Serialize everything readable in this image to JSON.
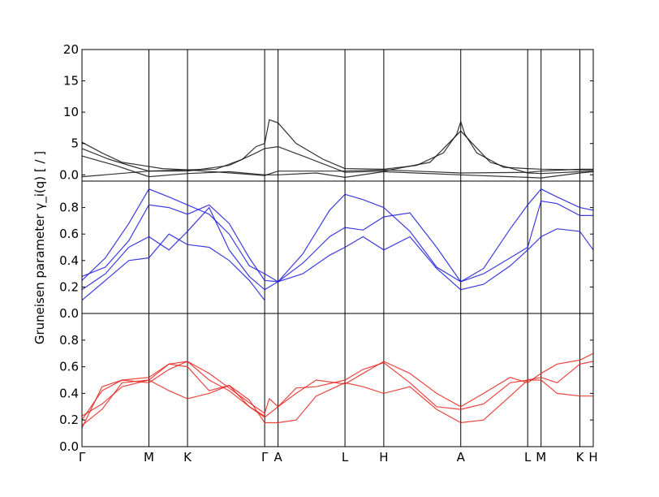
{
  "chart_data": {
    "type": "line",
    "ylabel": "Gruneisen parameter γ_i(q) [ / ]",
    "xticks": [
      {
        "label": "Γ",
        "x": 0
      },
      {
        "label": "M",
        "x": 1.0
      },
      {
        "label": "K",
        "x": 1.577
      },
      {
        "label": "Γ",
        "x": 2.73
      },
      {
        "label": "A",
        "x": 2.93
      },
      {
        "label": "L",
        "x": 3.93
      },
      {
        "label": "H",
        "x": 4.51
      },
      {
        "label": "A",
        "x": 5.66
      },
      {
        "label": "L",
        "x": 6.66
      },
      {
        "label": "M",
        "x": 6.86
      },
      {
        "label": "K",
        "x": 7.44
      },
      {
        "label": "H",
        "x": 7.64
      }
    ],
    "xlim": [
      0,
      7.64
    ],
    "panels": [
      {
        "color": "#111111",
        "ylim": [
          -1,
          20
        ],
        "yticks": [
          0.0,
          5,
          10,
          15,
          20
        ],
        "ytick_labels": [
          "0.0",
          "5",
          "10",
          "15",
          "20"
        ],
        "series": [
          {
            "x": [
              0,
              0.3,
              0.6,
              0.9,
              1.2,
              1.577,
              2.0,
              2.4,
              2.6,
              2.73,
              2.8,
              2.93,
              3.2,
              3.6,
              3.93,
              4.51,
              5.0,
              5.4,
              5.6,
              5.66,
              5.72,
              5.9,
              6.3,
              6.66,
              6.86,
              7.44,
              7.64
            ],
            "y": [
              5.2,
              3.5,
              2.0,
              1.5,
              1.0,
              0.8,
              0.9,
              2.5,
              4.5,
              5.0,
              8.8,
              8.3,
              5.0,
              2.5,
              1.0,
              0.9,
              1.5,
              3.5,
              6.5,
              8.5,
              6.5,
              3.5,
              1.2,
              1.0,
              0.9,
              0.8,
              0.8
            ]
          },
          {
            "x": [
              0,
              0.4,
              0.8,
              1.0,
              1.577,
              2.2,
              2.6,
              2.73,
              2.93,
              3.3,
              3.93,
              4.51,
              5.2,
              5.66,
              6.1,
              6.66,
              6.86,
              7.44,
              7.64
            ],
            "y": [
              4.2,
              2.5,
              1.2,
              0.6,
              0.6,
              1.5,
              3.5,
              4.2,
              4.5,
              3.0,
              0.4,
              0.6,
              2.0,
              7.0,
              2.0,
              0.3,
              0.2,
              0.5,
              0.6
            ]
          },
          {
            "x": [
              0,
              0.5,
              1.0,
              1.577,
              2.2,
              2.73,
              2.93,
              3.5,
              3.93,
              4.51,
              5.66,
              6.66,
              6.86,
              7.44,
              7.64
            ],
            "y": [
              3.0,
              1.5,
              -0.3,
              0.2,
              0.5,
              0.0,
              0.0,
              0.3,
              -0.4,
              0.5,
              0.0,
              -0.4,
              -0.5,
              0.3,
              0.5
            ]
          },
          {
            "x": [
              0,
              1.0,
              1.577,
              2.73,
              2.93,
              3.93,
              4.51,
              5.66,
              6.66,
              6.86,
              7.44,
              7.64
            ],
            "y": [
              -0.3,
              0.6,
              0.8,
              -0.1,
              0.6,
              0.6,
              0.8,
              0.3,
              0.4,
              0.6,
              0.9,
              0.9
            ]
          }
        ]
      },
      {
        "color": "#1a1add",
        "ylim": [
          0.0,
          1.0
        ],
        "yticks": [
          0.0,
          0.2,
          0.4,
          0.6,
          0.8
        ],
        "ytick_labels": [
          "0.0",
          "0.2",
          "0.4",
          "0.6",
          "0.8"
        ],
        "series": [
          {
            "x": [
              0,
              0.35,
              0.7,
              1.0,
              1.3,
              1.577,
              1.9,
              2.2,
              2.5,
              2.73,
              2.93,
              3.3,
              3.7,
              3.93,
              4.2,
              4.51,
              4.9,
              5.3,
              5.66,
              6.0,
              6.4,
              6.66,
              6.86,
              7.1,
              7.44,
              7.64
            ],
            "y": [
              0.28,
              0.35,
              0.55,
              0.82,
              0.8,
              0.75,
              0.82,
              0.68,
              0.42,
              0.25,
              0.24,
              0.45,
              0.78,
              0.9,
              0.86,
              0.8,
              0.62,
              0.35,
              0.24,
              0.34,
              0.64,
              0.82,
              0.94,
              0.88,
              0.8,
              0.78
            ]
          },
          {
            "x": [
              0,
              0.35,
              0.7,
              1.0,
              1.3,
              1.577,
              1.9,
              2.2,
              2.5,
              2.73,
              2.93,
              3.3,
              3.7,
              3.93,
              4.2,
              4.51,
              4.9,
              5.3,
              5.66,
              6.0,
              6.4,
              6.66,
              6.86,
              7.1,
              7.44,
              7.64
            ],
            "y": [
              0.25,
              0.42,
              0.68,
              0.94,
              0.88,
              0.82,
              0.75,
              0.6,
              0.36,
              0.3,
              0.24,
              0.38,
              0.58,
              0.65,
              0.63,
              0.73,
              0.76,
              0.5,
              0.24,
              0.3,
              0.42,
              0.5,
              0.85,
              0.83,
              0.74,
              0.74
            ]
          },
          {
            "x": [
              0,
              0.35,
              0.7,
              1.0,
              1.3,
              1.577,
              1.9,
              2.2,
              2.5,
              2.73,
              2.93,
              3.3,
              3.7,
              3.93,
              4.2,
              4.51,
              4.9,
              5.3,
              5.66,
              6.0,
              6.4,
              6.66,
              6.86,
              7.1,
              7.44,
              7.64
            ],
            "y": [
              0.18,
              0.3,
              0.5,
              0.58,
              0.48,
              0.62,
              0.8,
              0.48,
              0.28,
              0.18,
              0.24,
              0.3,
              0.44,
              0.5,
              0.58,
              0.48,
              0.58,
              0.34,
              0.18,
              0.22,
              0.36,
              0.48,
              0.58,
              0.64,
              0.62,
              0.48
            ]
          },
          {
            "x": [
              0,
              0.35,
              0.7,
              1.0,
              1.3,
              1.577,
              1.9,
              2.2,
              2.5,
              2.73
            ],
            "y": [
              0.1,
              0.25,
              0.4,
              0.42,
              0.6,
              0.52,
              0.5,
              0.4,
              0.25,
              0.1
            ]
          }
        ]
      },
      {
        "color": "#e8251e",
        "ylim": [
          0.0,
          1.0
        ],
        "yticks": [
          0.0,
          0.2,
          0.4,
          0.6,
          0.8
        ],
        "ytick_labels": [
          "0.0",
          "0.2",
          "0.4",
          "0.6",
          "0.8"
        ],
        "series": [
          {
            "x": [
              0,
              0.3,
              0.6,
              1.0,
              1.3,
              1.577,
              1.9,
              2.2,
              2.5,
              2.73,
              2.8,
              2.93,
              3.2,
              3.5,
              3.93,
              4.2,
              4.51,
              4.9,
              5.3,
              5.66,
              6.0,
              6.4,
              6.66,
              6.86,
              7.1,
              7.44,
              7.64
            ],
            "y": [
              0.23,
              0.32,
              0.45,
              0.5,
              0.62,
              0.64,
              0.55,
              0.44,
              0.33,
              0.25,
              0.36,
              0.3,
              0.4,
              0.5,
              0.47,
              0.55,
              0.64,
              0.55,
              0.4,
              0.3,
              0.4,
              0.52,
              0.48,
              0.55,
              0.62,
              0.65,
              0.7
            ]
          },
          {
            "x": [
              0,
              0.3,
              0.6,
              1.0,
              1.3,
              1.577,
              1.9,
              2.2,
              2.5,
              2.73,
              2.93,
              3.2,
              3.5,
              3.93,
              4.2,
              4.51,
              4.9,
              5.3,
              5.66,
              6.0,
              6.4,
              6.66,
              6.86,
              7.1,
              7.44,
              7.64
            ],
            "y": [
              0.2,
              0.42,
              0.5,
              0.48,
              0.58,
              0.64,
              0.5,
              0.42,
              0.3,
              0.22,
              0.3,
              0.44,
              0.45,
              0.5,
              0.58,
              0.63,
              0.48,
              0.3,
              0.28,
              0.32,
              0.48,
              0.5,
              0.52,
              0.48,
              0.62,
              0.64
            ]
          },
          {
            "x": [
              0,
              0.3,
              0.6,
              1.0,
              1.3,
              1.577,
              1.9,
              2.2,
              2.5,
              2.73,
              2.93,
              3.2,
              3.5,
              3.93,
              4.2,
              4.51,
              4.9,
              5.3,
              5.66,
              6.0,
              6.4,
              6.66,
              6.86,
              7.1,
              7.44,
              7.64
            ],
            "y": [
              0.16,
              0.28,
              0.48,
              0.5,
              0.42,
              0.36,
              0.4,
              0.46,
              0.35,
              0.18,
              0.18,
              0.2,
              0.38,
              0.48,
              0.45,
              0.4,
              0.45,
              0.28,
              0.18,
              0.2,
              0.38,
              0.5,
              0.5,
              0.4,
              0.38,
              0.38
            ]
          },
          {
            "x": [
              0,
              0.3,
              0.6,
              1.0,
              1.3,
              1.577,
              1.9,
              2.2,
              2.5,
              2.73
            ],
            "y": [
              0.14,
              0.45,
              0.5,
              0.52,
              0.62,
              0.6,
              0.42,
              0.46,
              0.3,
              0.23
            ]
          }
        ]
      }
    ]
  }
}
